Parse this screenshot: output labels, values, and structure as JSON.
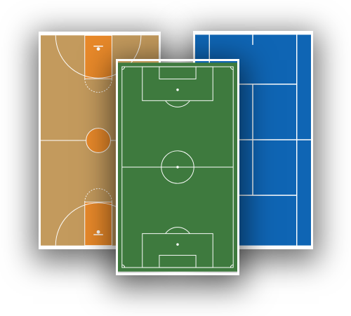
{
  "cards": [
    {
      "sport": "basketball",
      "surface_color": "#c39a5d",
      "key_color": "#e8892a"
    },
    {
      "sport": "soccer",
      "surface_color": "#3e7a3e"
    },
    {
      "sport": "tennis",
      "surface_color": "#0f65b4"
    }
  ],
  "line_color": "#ffffff"
}
